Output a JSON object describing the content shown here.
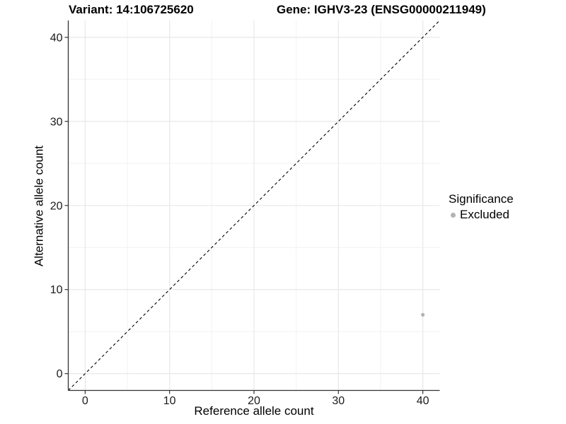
{
  "titles": {
    "left": "Variant: 14:106725620",
    "right": "Gene: IGHV3-23 (ENSG00000211949)"
  },
  "chart_data": {
    "type": "scatter",
    "title_left": "Variant: 14:106725620",
    "title_right": "Gene: IGHV3-23 (ENSG00000211949)",
    "xlabel": "Reference allele count",
    "ylabel": "Alternative allele count",
    "xlim": [
      -2,
      42
    ],
    "ylim": [
      -2,
      42
    ],
    "xticks": [
      0,
      10,
      20,
      30,
      40
    ],
    "yticks": [
      0,
      10,
      20,
      30,
      40
    ],
    "xticks_minor": [
      5,
      15,
      25,
      35
    ],
    "yticks_minor": [
      5,
      15,
      25,
      35
    ],
    "grid": "major+minor",
    "axis_lines": "left+bottom",
    "identity_line": {
      "style": "dashed",
      "from": [
        -2,
        -2
      ],
      "to": [
        42,
        42
      ],
      "color": "#000000"
    },
    "series": [
      {
        "name": "Excluded",
        "color": "#b3b3b3",
        "points": [
          {
            "x": 40,
            "y": 7
          }
        ]
      }
    ],
    "legend": {
      "title": "Significance",
      "position": "right",
      "items": [
        {
          "label": "Excluded",
          "color": "#b3b3b3"
        }
      ]
    },
    "style": {
      "grid_major_color": "#e6e6e6",
      "grid_minor_color": "#f2f2f2",
      "axis_color": "#333333",
      "tick_label_color": "#1a1a1a",
      "point_color": "#b0b0b0",
      "background": "#ffffff"
    }
  }
}
